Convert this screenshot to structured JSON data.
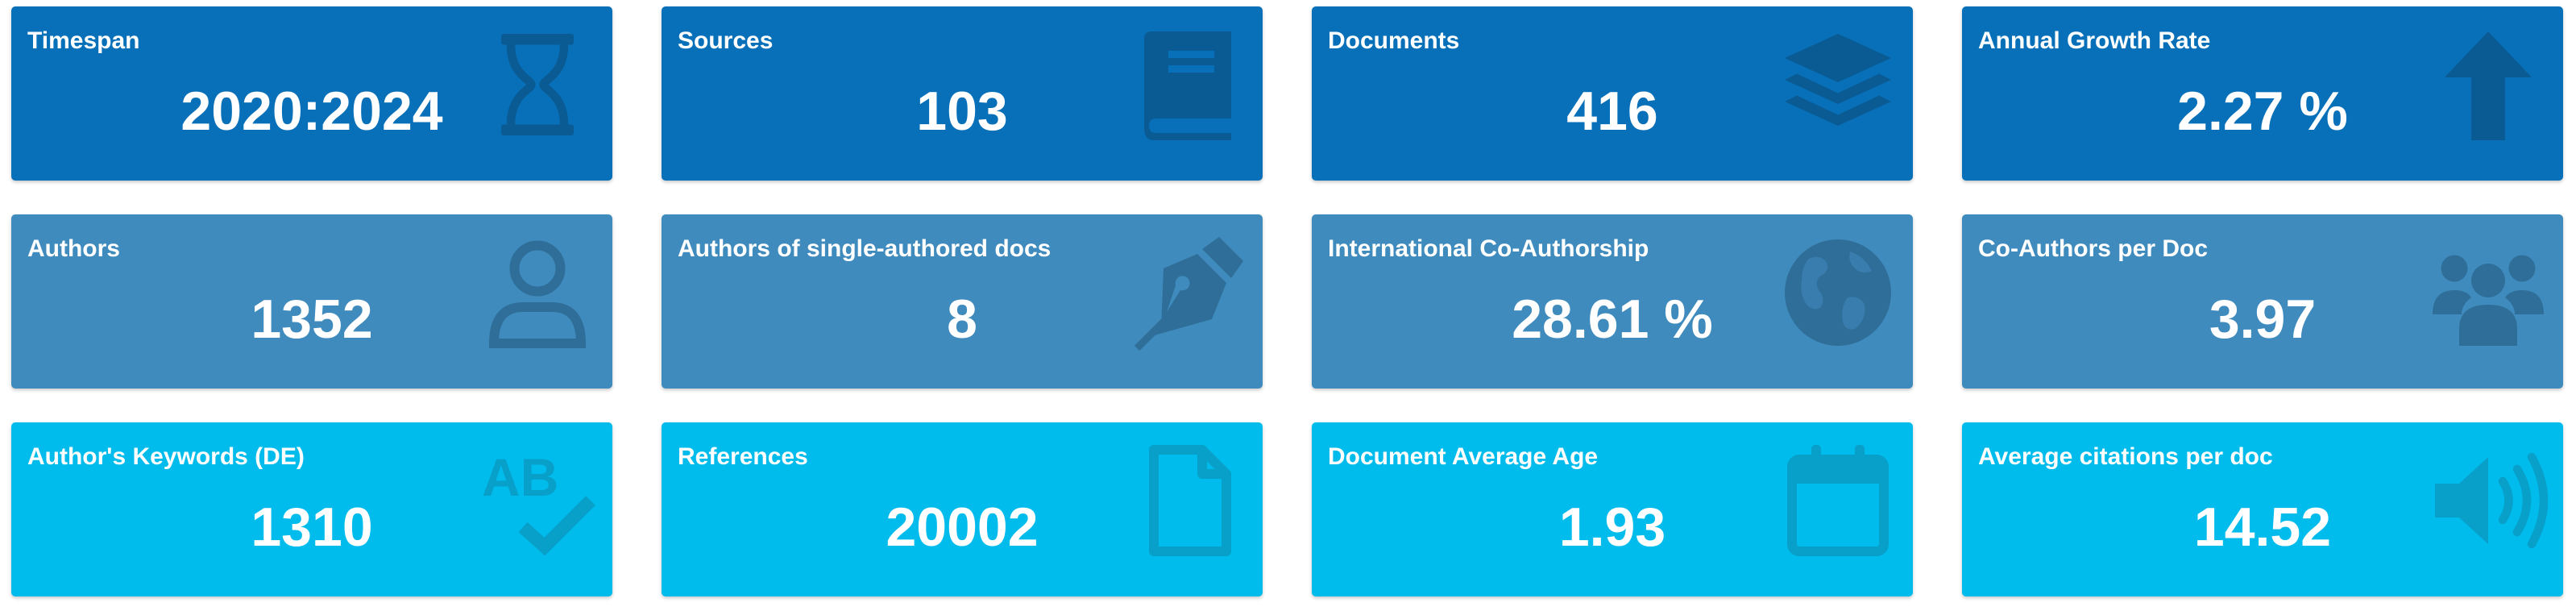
{
  "cards": [
    {
      "title": "Timespan",
      "value": "2020:2024",
      "icon": "hourglass-icon"
    },
    {
      "title": "Sources",
      "value": "103",
      "icon": "book-icon"
    },
    {
      "title": "Documents",
      "value": "416",
      "icon": "layers-icon"
    },
    {
      "title": "Annual Growth Rate",
      "value": "2.27 %",
      "icon": "arrow-up-icon"
    },
    {
      "title": "Authors",
      "value": "1352",
      "icon": "user-icon"
    },
    {
      "title": "Authors of single-authored docs",
      "value": "8",
      "icon": "pen-nib-icon"
    },
    {
      "title": "International Co-Authorship",
      "value": "28.61 %",
      "icon": "globe-icon"
    },
    {
      "title": "Co-Authors per Doc",
      "value": "3.97",
      "icon": "users-icon"
    },
    {
      "title": "Author's Keywords (DE)",
      "value": "1310",
      "icon": "spell-check-icon"
    },
    {
      "title": "References",
      "value": "20002",
      "icon": "file-icon"
    },
    {
      "title": "Document Average Age",
      "value": "1.93",
      "icon": "calendar-icon"
    },
    {
      "title": "Average citations per doc",
      "value": "14.52",
      "icon": "volume-icon"
    }
  ],
  "colors": {
    "row_1_background": "#0870b8",
    "row_2_background": "#3f8bbd",
    "row_3_background": "#00bcec",
    "text": "#ffffff"
  }
}
